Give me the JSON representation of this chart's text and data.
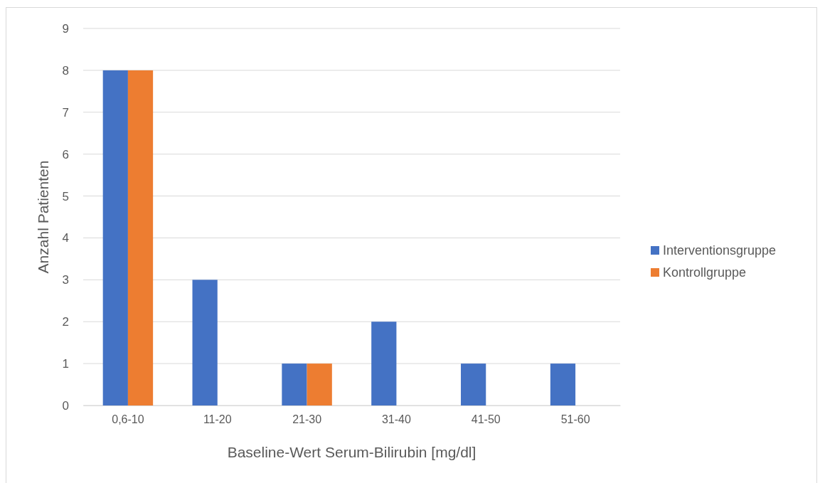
{
  "chart_data": {
    "type": "bar",
    "xlabel": "Baseline-Wert Serum-Bilirubin [mg/dl]",
    "ylabel": "Anzahl Patienten",
    "categories": [
      "0,6-10",
      "11-20",
      "21-30",
      "31-40",
      "41-50",
      "51-60"
    ],
    "series": [
      {
        "name": "Interventionsgruppe",
        "color": "#4472c4",
        "values": [
          8,
          3,
          1,
          2,
          1,
          1
        ]
      },
      {
        "name": "Kontrollgruppe",
        "color": "#ed7d31",
        "values": [
          8,
          0,
          1,
          0,
          0,
          0
        ]
      }
    ],
    "ylim": [
      0,
      9
    ],
    "yticks": [
      0,
      1,
      2,
      3,
      4,
      5,
      6,
      7,
      8,
      9
    ],
    "grid": "y",
    "legend": "right"
  }
}
